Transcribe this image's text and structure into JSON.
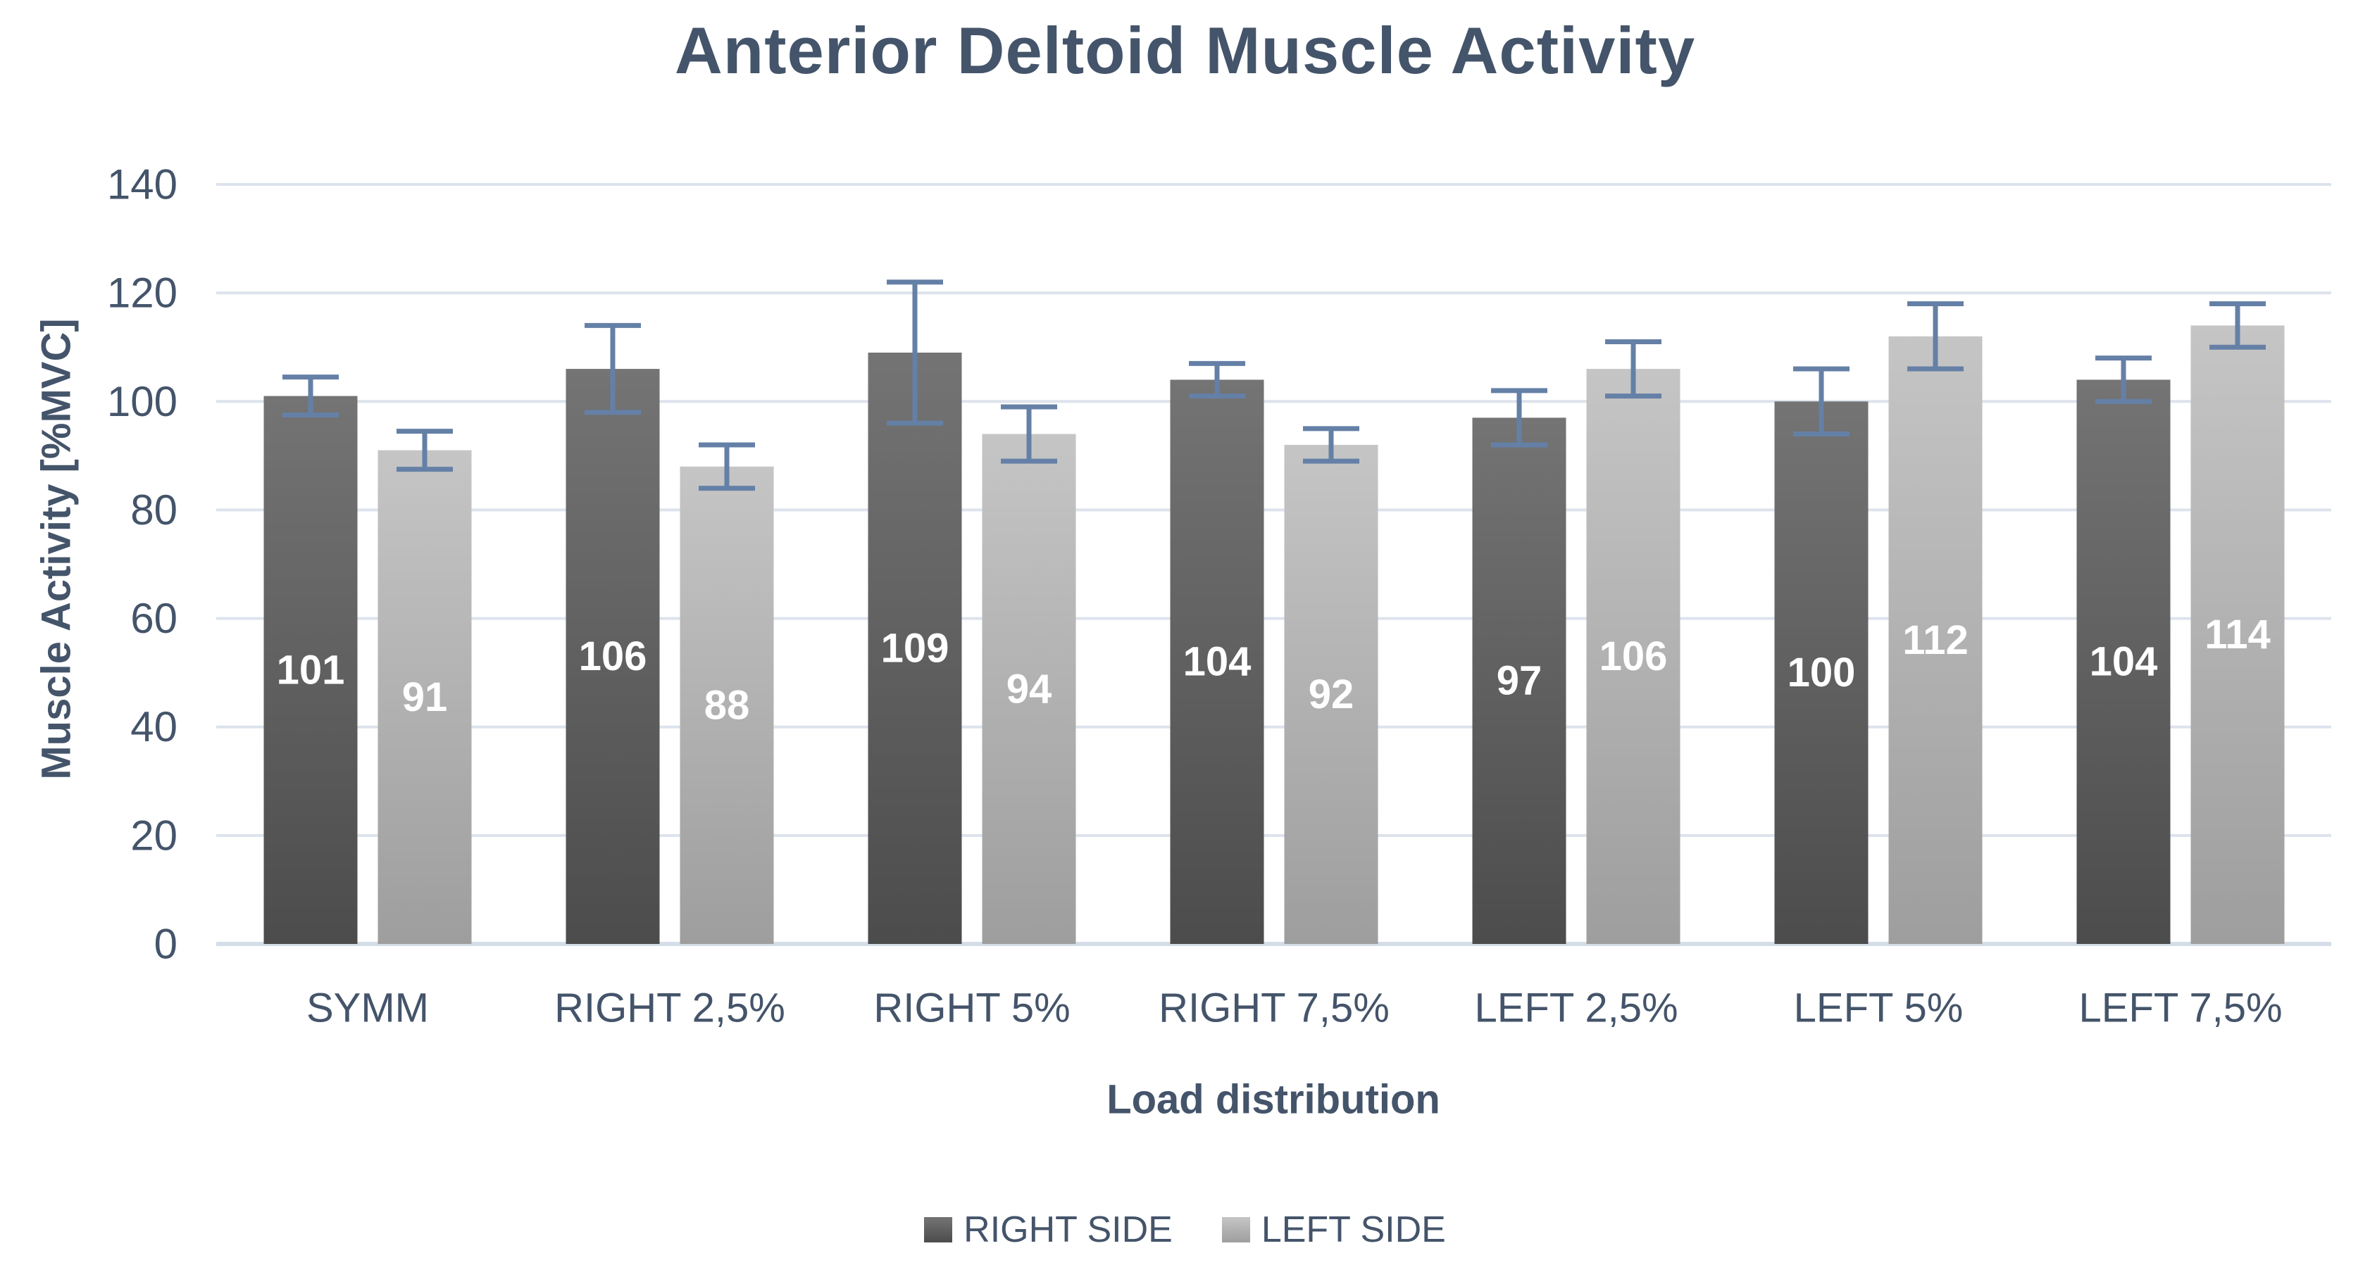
{
  "chart_data": {
    "type": "bar",
    "title": "Anterior Deltoid Muscle Activity",
    "xlabel": "Load distribution",
    "ylabel": "Muscle Activity [%MVC]",
    "categories": [
      "SYMM",
      "RIGHT 2,5%",
      "RIGHT 5%",
      "RIGHT 7,5%",
      "LEFT 2,5%",
      "LEFT 5%",
      "LEFT 7,5%"
    ],
    "series": [
      {
        "name": "RIGHT SIDE",
        "values": [
          101,
          106,
          109,
          104,
          97,
          100,
          104
        ],
        "errors": [
          3.5,
          8,
          13,
          3,
          5,
          6,
          4
        ],
        "color_top": "#747474",
        "color_bottom": "#4C4C4C"
      },
      {
        "name": "LEFT SIDE",
        "values": [
          91,
          88,
          94,
          92,
          106,
          112,
          114
        ],
        "errors": [
          3.5,
          4,
          5,
          3,
          5,
          6,
          4
        ],
        "color_top": "#C5C5C5",
        "color_bottom": "#9E9E9E"
      }
    ],
    "ylim": [
      0,
      140
    ],
    "yticks": [
      0,
      20,
      40,
      60,
      80,
      100,
      120,
      140
    ],
    "grid": true,
    "legend_position": "bottom",
    "value_labels": "inside-center",
    "colors": {
      "text": "#44546A",
      "gridline": "#DDE3ED",
      "baseline": "#D5DDE8",
      "error_bar": "#6580A6",
      "value_label": "#FFFFFF",
      "background": "#FFFFFF"
    }
  }
}
